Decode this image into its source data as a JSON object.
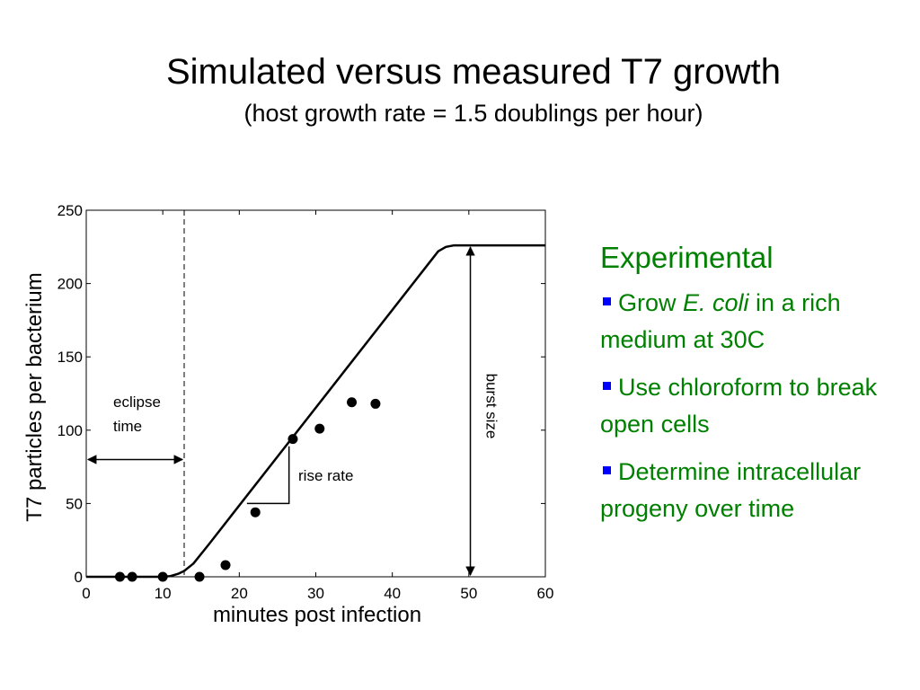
{
  "slide": {
    "title": "Simulated versus measured T7 growth",
    "subtitle": "(host growth rate = 1.5 doublings per hour)"
  },
  "sidebar": {
    "heading": "Experimental",
    "bullets": [
      {
        "before": "Grow ",
        "emph": "E. coli",
        "after": " in a rich medium at 30C"
      },
      {
        "text": "Use chloroform to break open cells"
      },
      {
        "text": "Determine intracellular progeny over time"
      }
    ]
  },
  "colors": {
    "text_accent": "#008000",
    "bullet": "#0000ff"
  },
  "chart_data": {
    "type": "scatter",
    "xlabel": "minutes post infection",
    "ylabel": "T7 particles per bacterium",
    "xlim": [
      0,
      60
    ],
    "ylim": [
      0,
      250
    ],
    "x_ticks": [
      0,
      10,
      20,
      30,
      40,
      50,
      60
    ],
    "y_ticks": [
      0,
      50,
      100,
      150,
      200,
      250
    ],
    "grid": false,
    "series": [
      {
        "kind": "line",
        "x": [
          0,
          10,
          11,
          12,
          12.8,
          14,
          16,
          46,
          47,
          48,
          60
        ],
        "y": [
          0,
          0,
          0.5,
          2,
          4,
          9,
          22,
          222,
          225,
          226,
          226
        ]
      },
      {
        "kind": "points",
        "x": [
          4.4,
          6,
          10,
          14.8,
          18.2,
          22.1,
          27,
          30.5,
          34.7,
          37.8
        ],
        "y": [
          0,
          0,
          0,
          0,
          8,
          44,
          94,
          101,
          119,
          118
        ]
      }
    ],
    "annotations": {
      "eclipse": {
        "label_line1": "eclipse",
        "label_line2": "time",
        "x_end": 12.8,
        "y": 80
      },
      "rise_rate": {
        "label": "rise rate",
        "x1": 21,
        "x2": 26.5,
        "y1": 50,
        "y2": 89
      },
      "burst_size": {
        "label": "burst size",
        "x": 50.2,
        "y_low": 0,
        "y_high": 226
      }
    }
  }
}
